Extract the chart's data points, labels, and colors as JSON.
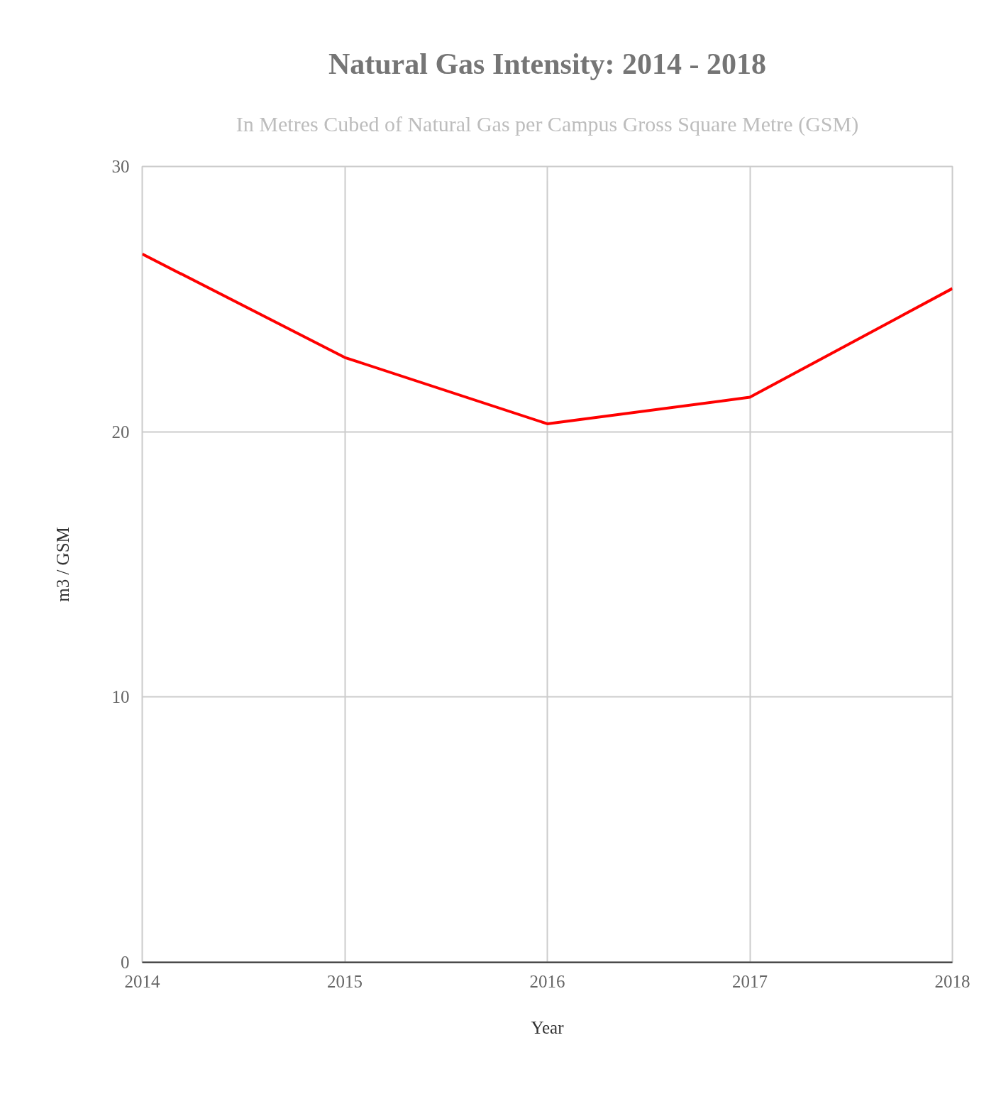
{
  "chart_data": {
    "type": "line",
    "title": "Natural Gas Intensity: 2014 - 2018",
    "subtitle": "In Metres Cubed of Natural Gas per Campus Gross Square Metre (GSM)",
    "xlabel": "Year",
    "ylabel": "m3 / GSM",
    "x": [
      2014,
      2015,
      2016,
      2017,
      2018
    ],
    "series": [
      {
        "color": "#ff0000",
        "values": [
          26.7,
          22.8,
          20.3,
          21.3,
          25.4
        ]
      }
    ],
    "xlim": [
      2014,
      2018
    ],
    "ylim": [
      0,
      30
    ],
    "xticks": [
      2014,
      2015,
      2016,
      2017,
      2018
    ],
    "yticks": [
      0,
      10,
      20,
      30
    ],
    "grid": true,
    "line_style": "solid"
  }
}
